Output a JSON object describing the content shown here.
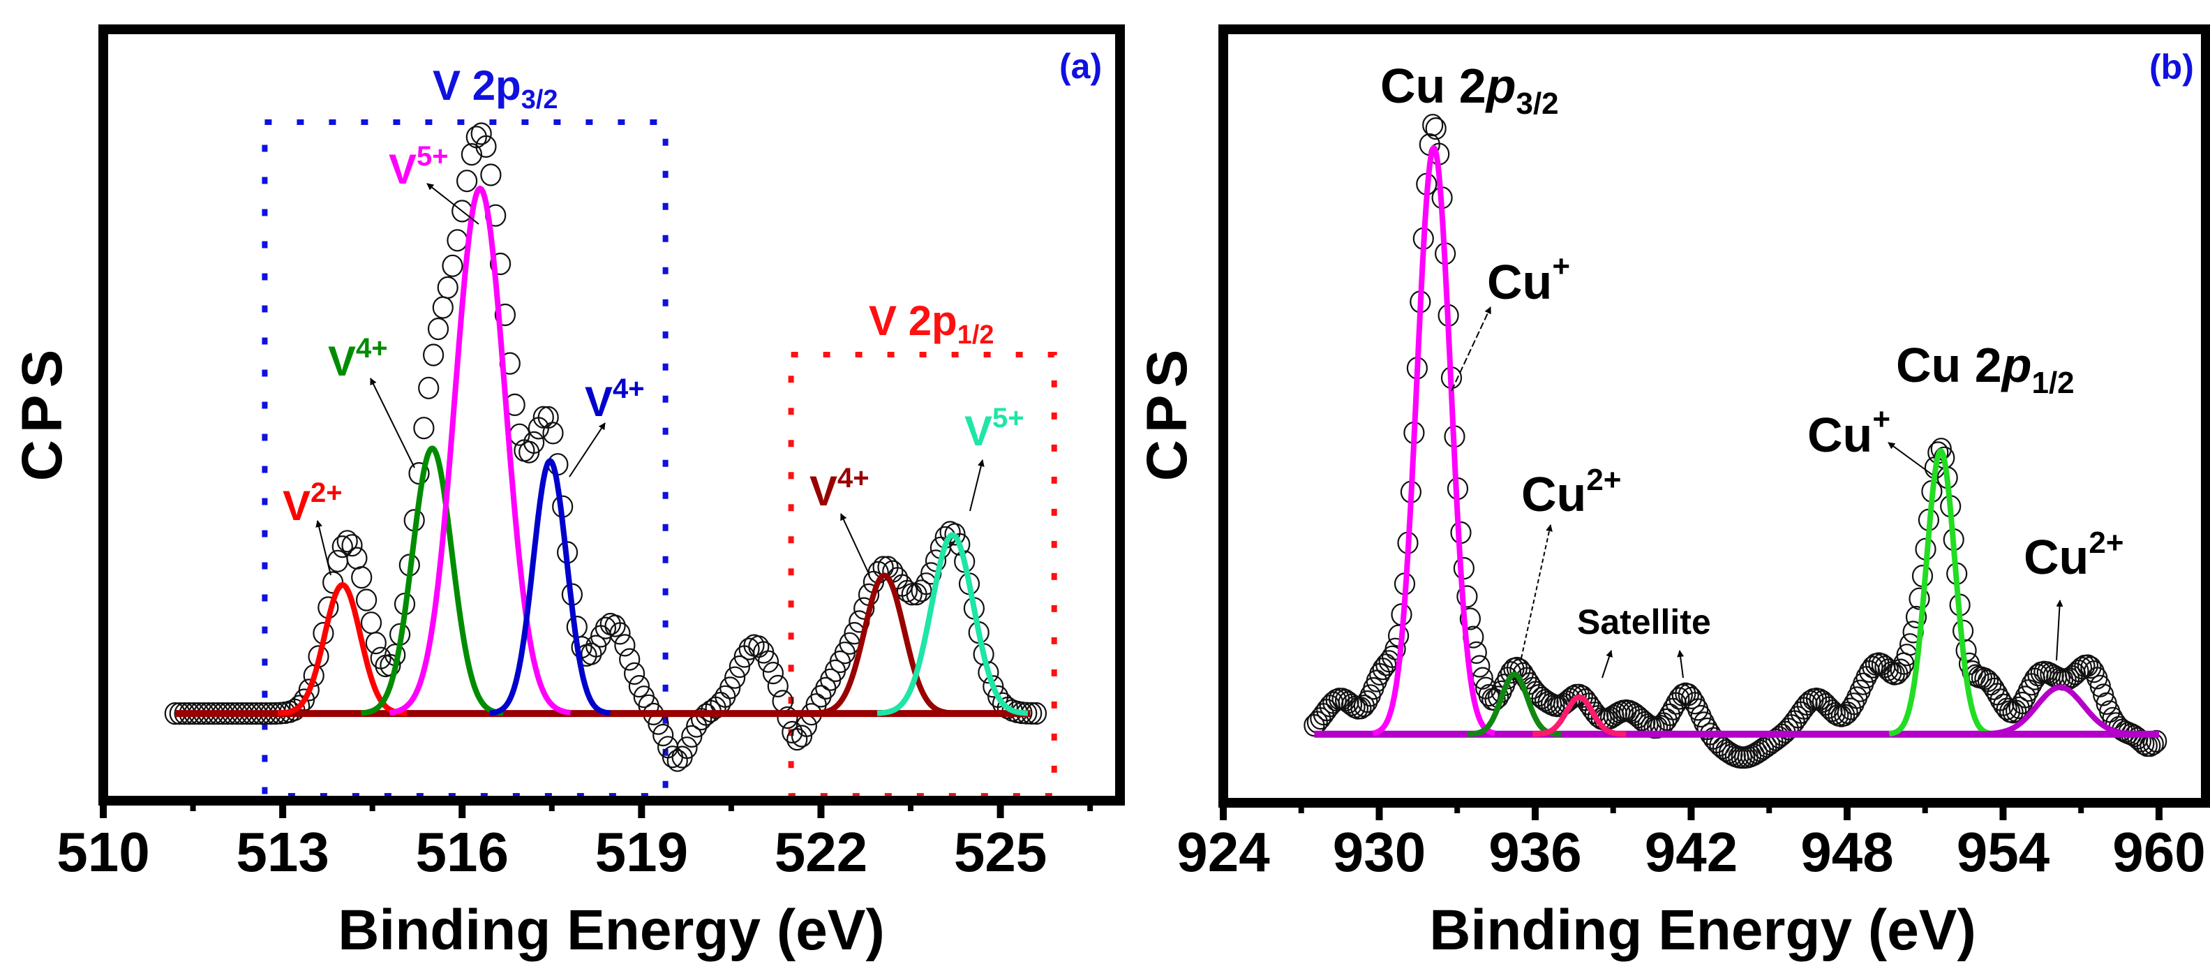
{
  "chart_data": [
    {
      "type": "scatter",
      "panel_label": "(a)",
      "xlabel": "Binding Energy (eV)",
      "ylabel": "CPS",
      "xlim": [
        510,
        527
      ],
      "ylim": [
        -0.166,
        1.303
      ],
      "x_ticks": [
        510,
        513,
        516,
        519,
        522,
        525
      ],
      "x_tick_labels": [
        "510",
        "513",
        "516",
        "519",
        "522",
        "525"
      ],
      "minor_tick_step": 1.5,
      "y_ticks": [],
      "regions": [
        {
          "name": "V 2p3/2",
          "base": "V 2p",
          "sub": "3/2",
          "color": "#1010e0",
          "x_range": [
            512.7,
            519.4
          ]
        },
        {
          "name": "V 2p1/2",
          "base": "V 2p",
          "sub": "1/2",
          "color": "#ff1010",
          "x_range": [
            521.5,
            525.9
          ]
        }
      ],
      "baseline": {
        "color": "#990000",
        "x_range": [
          511.2,
          525.5
        ]
      },
      "fit_components": [
        {
          "label": "V2+",
          "base": "V",
          "sup": "2+",
          "center": 514.0,
          "height": 0.245,
          "sigma": 0.3,
          "color": "#ff0000"
        },
        {
          "label": "V4+",
          "base": "V",
          "sup": "4+",
          "center": 515.5,
          "height": 0.505,
          "sigma": 0.33,
          "color": "#008c00"
        },
        {
          "label": "V5+",
          "base": "V",
          "sup": "5+",
          "center": 516.3,
          "height": 1.0,
          "sigma": 0.42,
          "color": "#ff00ff"
        },
        {
          "label": "V4+",
          "base": "V",
          "sup": "4+",
          "center": 517.47,
          "height": 0.481,
          "sigma": 0.28,
          "color": "#0000cc"
        },
        {
          "label": "V4+",
          "base": "V",
          "sup": "4+",
          "center": 523.06,
          "height": 0.263,
          "sigma": 0.33,
          "color": "#990000"
        },
        {
          "label": "V5+",
          "base": "V",
          "sup": "5+",
          "center": 524.2,
          "height": 0.34,
          "sigma": 0.35,
          "color": "#1de6a6"
        }
      ],
      "experimental": {
        "marker": "open-circle",
        "x_range": [
          511.2,
          525.6
        ],
        "step": 0.08,
        "model": "sum of fit components plus residual features",
        "residual_features": [
          [
            514.3,
            0.12,
            0.3
          ],
          [
            516.9,
            0.15,
            0.4
          ],
          [
            516.3,
            0.03,
            0.2
          ],
          [
            518.5,
            0.17,
            0.3
          ],
          [
            519.6,
            -0.09,
            0.2
          ],
          [
            520.9,
            0.13,
            0.3
          ],
          [
            521.6,
            -0.06,
            0.15
          ],
          [
            522.4,
            0.08,
            0.3
          ],
          [
            523.6,
            0.08,
            0.25
          ]
        ]
      }
    },
    {
      "type": "scatter",
      "panel_label": "(b)",
      "xlabel": "Binding Energy (eV)",
      "ylabel": "CPS",
      "xlim": [
        924,
        961.8
      ],
      "ylim": [
        -0.117,
        1.202
      ],
      "x_ticks": [
        924,
        930,
        936,
        942,
        948,
        954,
        960
      ],
      "x_tick_labels": [
        "924",
        "930",
        "936",
        "942",
        "948",
        "954",
        "960"
      ],
      "minor_tick_step": 3,
      "y_ticks": [],
      "region_labels": [
        {
          "name": "Cu 2p3/2",
          "base": "Cu 2",
          "ital": "p",
          "sub": "3/2"
        },
        {
          "name": "Cu 2p1/2",
          "base": "Cu 2",
          "ital": "p",
          "sub": "1/2"
        }
      ],
      "annotation": "Satellite",
      "baseline": {
        "color": "#b400c8",
        "x_range": [
          927.5,
          960
        ]
      },
      "fit_components": [
        {
          "label": "Cu+",
          "base": "Cu",
          "sup": "+",
          "center": 932.1,
          "height": 1.0,
          "sigma": 0.65,
          "color": "#ff00ff"
        },
        {
          "label": "Cu2+",
          "base": "Cu",
          "sup": "2+",
          "center": 935.2,
          "height": 0.102,
          "sigma": 0.5,
          "color": "#118811"
        },
        {
          "label": "Satellite",
          "center": 937.7,
          "height": 0.063,
          "sigma": 0.5,
          "color": "#ff1a6e"
        },
        {
          "label": "Cu+",
          "base": "Cu",
          "sup": "+",
          "center": 951.6,
          "height": 0.483,
          "sigma": 0.55,
          "color": "#22dd22"
        },
        {
          "label": "Cu2+",
          "base": "Cu",
          "sup": "2+",
          "center": 956.2,
          "height": 0.08,
          "sigma": 0.9,
          "color": "#b400c8"
        }
      ],
      "experimental": {
        "marker": "open-circle",
        "x_range": [
          927.5,
          960
        ],
        "step": 0.12,
        "model": "sum of fit components plus residual features",
        "residual_features": [
          [
            928.5,
            0.06,
            0.6
          ],
          [
            930.2,
            0.1,
            0.5
          ],
          [
            932.1,
            0.04,
            0.3
          ],
          [
            933.6,
            0.1,
            0.5
          ],
          [
            936.3,
            0.05,
            0.6
          ],
          [
            939.5,
            0.04,
            0.6
          ],
          [
            941.8,
            0.07,
            0.5
          ],
          [
            944.0,
            -0.04,
            0.8
          ],
          [
            946.8,
            0.06,
            0.6
          ],
          [
            949.2,
            0.12,
            0.7
          ],
          [
            950.5,
            0.08,
            0.4
          ],
          [
            953.3,
            0.09,
            0.6
          ],
          [
            955.3,
            0.05,
            0.5
          ],
          [
            957.4,
            0.08,
            0.5
          ],
          [
            959.6,
            -0.02,
            0.3
          ]
        ]
      }
    }
  ]
}
